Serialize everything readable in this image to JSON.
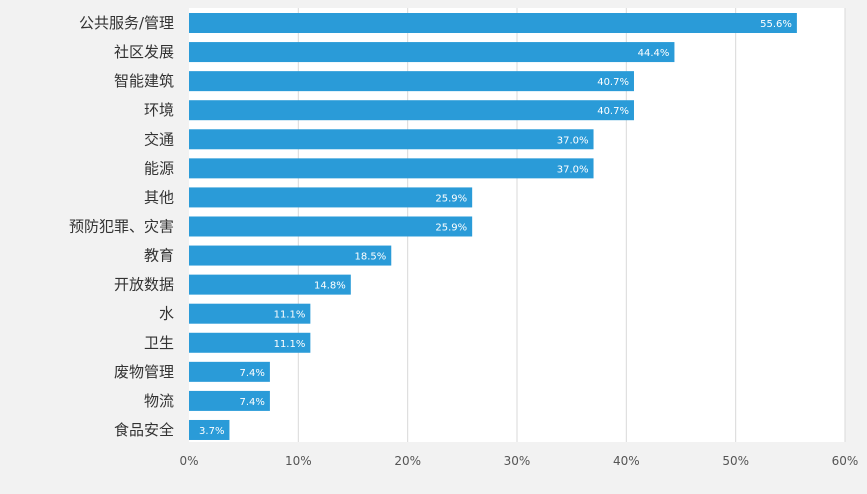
{
  "chart_data": {
    "type": "bar",
    "orientation": "horizontal",
    "categories": [
      "公共服务/管理",
      "社区发展",
      "智能建筑",
      "环境",
      "交通",
      "能源",
      "其他",
      "预防犯罪、灾害",
      "教育",
      "开放数据",
      "水",
      "卫生",
      "废物管理",
      "物流",
      "食品安全"
    ],
    "values": [
      55.6,
      44.4,
      40.7,
      40.7,
      37.0,
      37.0,
      25.9,
      25.9,
      18.5,
      14.8,
      11.1,
      11.1,
      7.4,
      7.4,
      3.7
    ],
    "data_labels": [
      "55.6%",
      "44.4%",
      "40.7%",
      "40.7%",
      "37.0%",
      "37.0%",
      "25.9%",
      "25.9%",
      "18.5%",
      "14.8%",
      "11.1%",
      "11.1%",
      "7.4%",
      "7.4%",
      "3.7%"
    ],
    "x_ticks": [
      0,
      10,
      20,
      30,
      40,
      50,
      60
    ],
    "x_tick_labels": [
      "0%",
      "10%",
      "20%",
      "30%",
      "40%",
      "50%",
      "60%"
    ],
    "xlim": [
      0,
      60
    ],
    "grid": "vertical",
    "bar_color": "#2a9bd8",
    "grid_color": "#d9d9d9",
    "plot_background": "#ffffff",
    "page_background": "#f2f2f2"
  }
}
